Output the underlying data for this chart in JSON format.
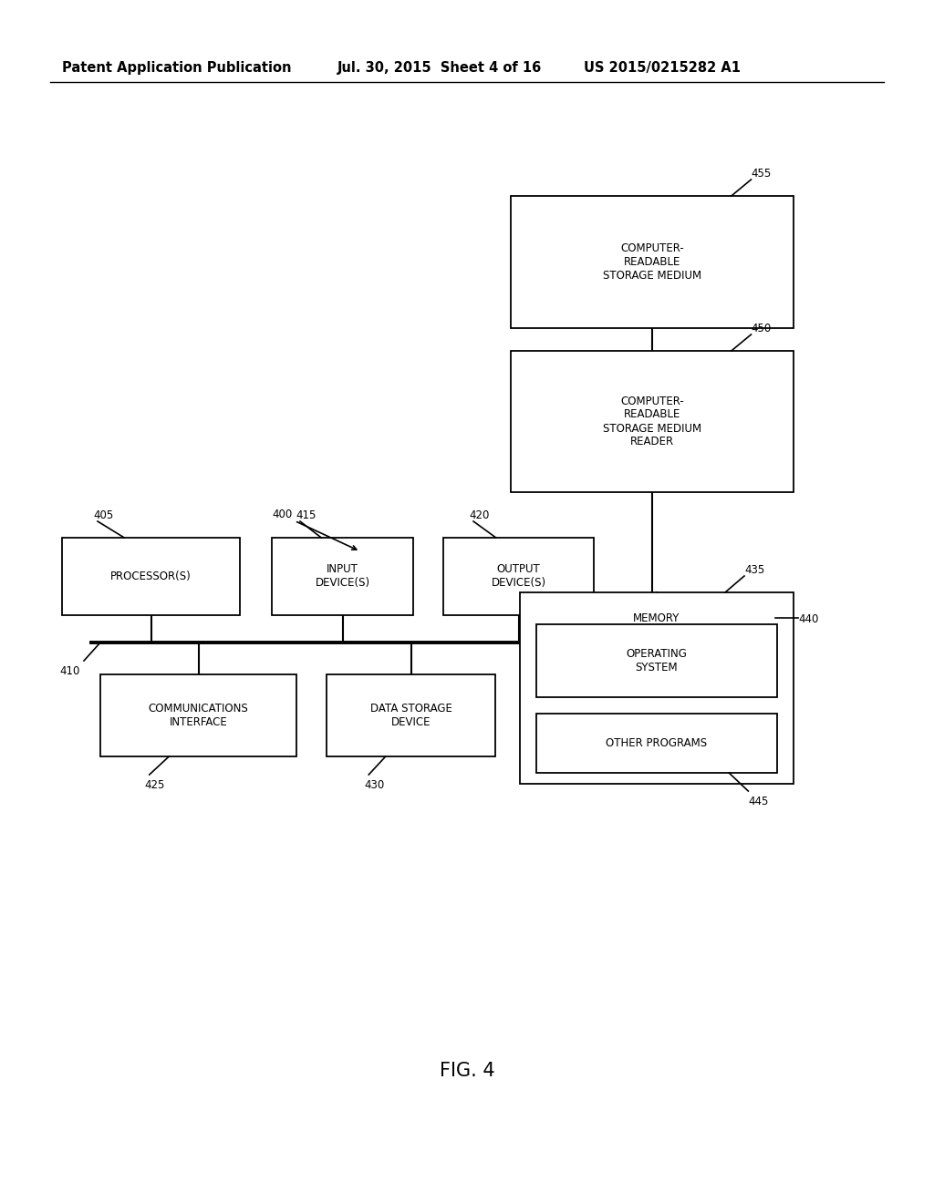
{
  "background_color": "#ffffff",
  "header_left": "Patent Application Publication",
  "header_mid": "Jul. 30, 2015  Sheet 4 of 16",
  "header_right": "US 2015/0215282 A1",
  "fig_label": "FIG. 4",
  "boxes": {
    "crm": {
      "label": "COMPUTER-\nREADABLE\nSTORAGE MEDIUM",
      "ref": "455"
    },
    "crmr": {
      "label": "COMPUTER-\nREADABLE\nSTORAGE MEDIUM\nREADER",
      "ref": "450"
    },
    "proc": {
      "label": "PROCESSOR(S)",
      "ref": "405"
    },
    "input": {
      "label": "INPUT\nDEVICE(S)",
      "ref": "415"
    },
    "output": {
      "label": "OUTPUT\nDEVICE(S)",
      "ref": "420"
    },
    "comm": {
      "label": "COMMUNICATIONS\nINTERFACE",
      "ref": "425"
    },
    "data": {
      "label": "DATA STORAGE\nDEVICE",
      "ref": "430"
    },
    "mem": {
      "label": "MEMORY",
      "ref": "435"
    },
    "os": {
      "label": "OPERATING\nSYSTEM",
      "ref": "440"
    },
    "other": {
      "label": "OTHER PROGRAMS",
      "ref": "445"
    }
  },
  "font_size_box": 8.5,
  "font_size_ref": 8.5,
  "font_size_header": 10.5,
  "font_size_fig": 15
}
